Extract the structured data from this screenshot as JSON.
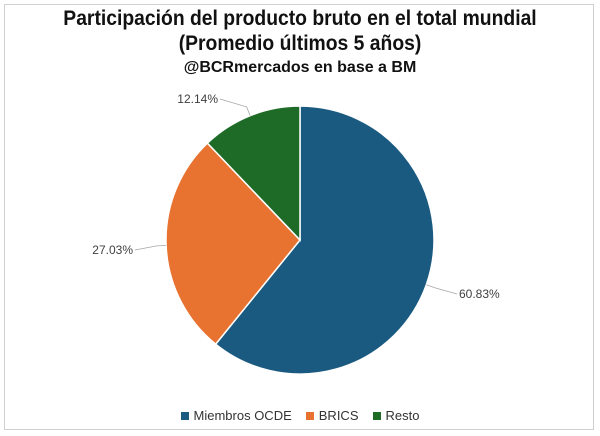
{
  "chart_data": {
    "type": "pie",
    "title": "Participación del producto bruto en el total mundial",
    "subtitle": "(Promedio últimos 5 años)",
    "source": "@BCRmercados en base a BM",
    "categories": [
      "Miembros OCDE",
      "BRICS",
      "Resto"
    ],
    "values": [
      60.83,
      27.03,
      12.14
    ],
    "labels": [
      "60.83%",
      "27.03%",
      "12.14%"
    ],
    "colors": [
      "#1b5a80",
      "#e8722f",
      "#1e6b28"
    ],
    "legend_position": "bottom"
  }
}
